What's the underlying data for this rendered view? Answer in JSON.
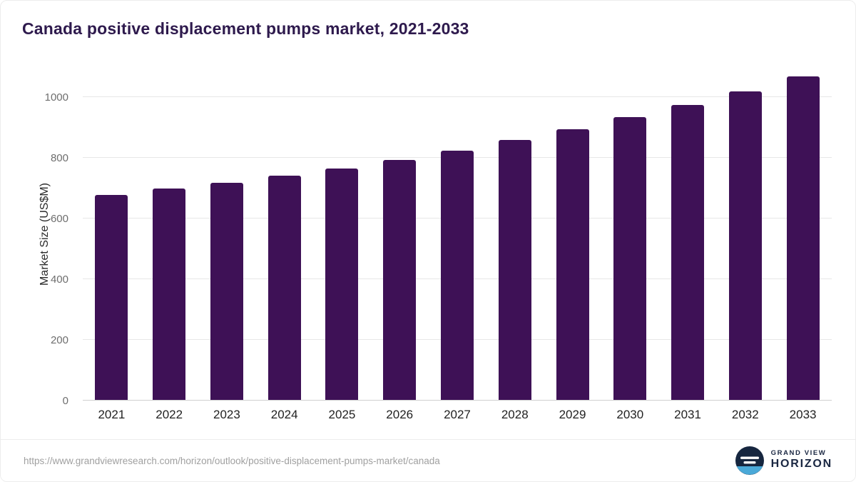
{
  "title": "Canada positive displacement pumps market, 2021-2033",
  "chart_data": {
    "type": "bar",
    "title": "Canada positive displacement pumps market, 2021-2033",
    "categories": [
      "2021",
      "2022",
      "2023",
      "2024",
      "2025",
      "2026",
      "2027",
      "2028",
      "2029",
      "2030",
      "2031",
      "2032",
      "2033"
    ],
    "values": [
      676,
      697,
      716,
      740,
      764,
      791,
      823,
      857,
      893,
      933,
      974,
      1018,
      1068
    ],
    "xlabel": "",
    "ylabel": "Market Size (US$M)",
    "ylim": [
      0,
      1082
    ],
    "yticks": [
      0,
      200,
      400,
      600,
      800,
      1000
    ],
    "bar_color": "#3e1156",
    "grid": "horizontal",
    "legend": "none"
  },
  "footer": {
    "source_url": "https://www.grandviewresearch.com/horizon/outlook/positive-displacement-pumps-market/canada",
    "brand_top": "GRAND VIEW",
    "brand_bottom": "HORIZON",
    "logo_dark": "#16263f",
    "logo_blue": "#4aa9d8"
  }
}
